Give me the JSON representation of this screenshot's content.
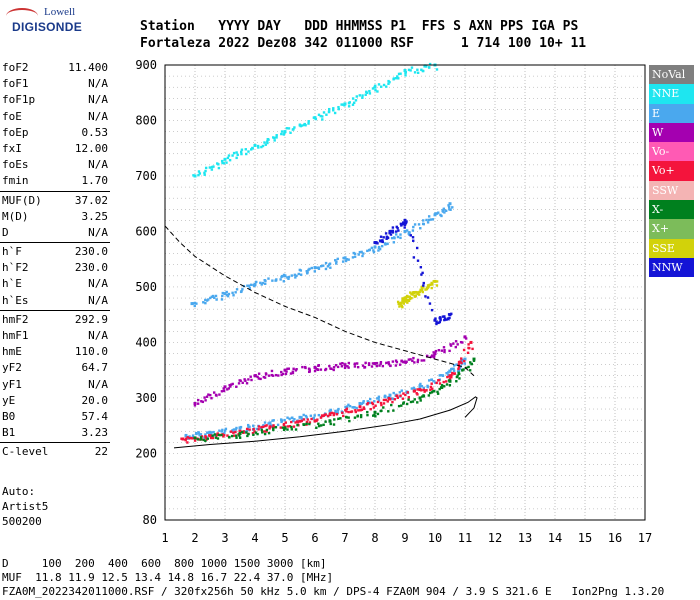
{
  "logo": {
    "line1": "Lowell",
    "line2": "DIGISONDE"
  },
  "header": {
    "labels": "Station   YYYY DAY   DDD HHMMSS P1  FFS S AXN PPS IGA PS",
    "values": "Fortaleza 2022 Dez08 342 011000 RSF      1 714 100 10+ 11"
  },
  "params": {
    "g1": [
      {
        "label": "foF2",
        "value": "11.400"
      },
      {
        "label": "foF1",
        "value": "N/A"
      },
      {
        "label": "foF1p",
        "value": "N/A"
      },
      {
        "label": "foE",
        "value": "N/A"
      },
      {
        "label": "foEp",
        "value": "0.53"
      },
      {
        "label": "fxI",
        "value": "12.00"
      },
      {
        "label": "foEs",
        "value": "N/A"
      },
      {
        "label": "fmin",
        "value": "1.70"
      }
    ],
    "g2": [
      {
        "label": "MUF(D)",
        "value": "37.02"
      },
      {
        "label": "M(D)",
        "value": "3.25"
      },
      {
        "label": "D",
        "value": "N/A"
      }
    ],
    "g3": [
      {
        "label": "h`F",
        "value": "230.0"
      },
      {
        "label": "h`F2",
        "value": "230.0"
      },
      {
        "label": "h`E",
        "value": "N/A"
      },
      {
        "label": "h`Es",
        "value": "N/A"
      }
    ],
    "g4": [
      {
        "label": "hmF2",
        "value": "292.9"
      },
      {
        "label": "hmF1",
        "value": "N/A"
      },
      {
        "label": "hmE",
        "value": "110.0"
      },
      {
        "label": "yF2",
        "value": "64.7"
      },
      {
        "label": "yF1",
        "value": "N/A"
      },
      {
        "label": "yE",
        "value": "20.0"
      },
      {
        "label": "B0",
        "value": "57.4"
      },
      {
        "label": "B1",
        "value": "3.23"
      }
    ],
    "g5": [
      {
        "label": "C-level",
        "value": "22"
      }
    ],
    "auto": [
      "Auto:",
      "Artist5",
      "500200"
    ]
  },
  "legend": [
    {
      "label": "NoVal",
      "color": "#7f7f7f"
    },
    {
      "label": "NNE",
      "color": "#1ee6f0"
    },
    {
      "label": "E",
      "color": "#4aa8ee"
    },
    {
      "label": "W",
      "color": "#a400b0"
    },
    {
      "label": "Vo-",
      "color": "#ff5ab4"
    },
    {
      "label": "Vo+",
      "color": "#f4143c"
    },
    {
      "label": "SSW",
      "color": "#f4b4b4"
    },
    {
      "label": "X-",
      "color": "#00801e"
    },
    {
      "label": "X+",
      "color": "#7cbc5a"
    },
    {
      "label": "SSE",
      "color": "#d2d20a"
    },
    {
      "label": "NNW",
      "color": "#1414d6"
    }
  ],
  "footer": {
    "line1": "D     100  200  400  600  800 1000 1500 3000 [km]",
    "line2": "MUF  11.8 11.9 12.5 13.4 14.8 16.7 22.4 37.0 [MHz]",
    "line3": "FZA0M_2022342011000.RSF / 320fx256h 50 kHz 5.0 km / DPS-4 FZA0M 904 / 3.9 S 321.6 E   Ion2Png 1.3.20"
  },
  "chart_data": {
    "type": "scatter",
    "xlim": [
      1,
      17
    ],
    "ylim": [
      80,
      900
    ],
    "x_ticks": [
      1,
      2,
      3,
      4,
      5,
      6,
      7,
      8,
      9,
      10,
      11,
      12,
      13,
      14,
      15,
      16,
      17
    ],
    "y_ticks": [
      80,
      200,
      300,
      400,
      500,
      600,
      700,
      800,
      900
    ],
    "grid": true,
    "traces": [
      {
        "name": "E",
        "color": "#4aa8ee",
        "x": [
          1.7,
          2.5,
          3.5,
          4.5,
          5.5,
          6.5,
          7.5,
          8.5,
          9.5,
          10.5,
          11.0
        ],
        "y": [
          232,
          238,
          246,
          255,
          265,
          276,
          290,
          305,
          322,
          348,
          370
        ]
      },
      {
        "name": "Vo+",
        "color": "#f4143c",
        "x": [
          1.6,
          2.5,
          3.5,
          4.5,
          5.5,
          6.5,
          7.5,
          8.5,
          9.5,
          10.5,
          11.2
        ],
        "y": [
          226,
          232,
          240,
          248,
          258,
          270,
          284,
          298,
          315,
          340,
          400
        ]
      },
      {
        "name": "W",
        "color": "#a400b0",
        "x": [
          2.0,
          3.0,
          4.0,
          5.0,
          6.0,
          7.0,
          8.0,
          9.0,
          10.0,
          11.0
        ],
        "y": [
          290,
          320,
          340,
          350,
          355,
          360,
          362,
          365,
          380,
          410
        ]
      },
      {
        "name": "X-",
        "color": "#00801e",
        "x": [
          2.0,
          3.5,
          5.0,
          6.5,
          8.0,
          9.5,
          10.5,
          11.3
        ],
        "y": [
          228,
          236,
          246,
          258,
          274,
          300,
          330,
          370
        ]
      },
      {
        "name": "E",
        "color": "#4aa8ee",
        "x": [
          1.9,
          3.0,
          4.0,
          5.0,
          6.0,
          7.0,
          8.0,
          9.0,
          10.0,
          10.5
        ],
        "y": [
          470,
          488,
          505,
          520,
          535,
          552,
          572,
          600,
          630,
          650
        ]
      },
      {
        "name": "NNE",
        "color": "#1ee6f0",
        "x": [
          2.0,
          3.0,
          4.0,
          5.0,
          6.0,
          7.0,
          8.0,
          9.0,
          10.0
        ],
        "y": [
          700,
          730,
          755,
          780,
          805,
          830,
          860,
          890,
          900
        ]
      },
      {
        "name": "SSE",
        "color": "#d2d20a",
        "x": [
          8.8,
          9.0,
          9.3,
          9.6,
          10.0
        ],
        "y": [
          470,
          480,
          490,
          500,
          510
        ]
      },
      {
        "name": "NNW",
        "color": "#1414d6",
        "x": [
          8.0,
          8.5,
          9.0,
          10.0,
          10.5
        ],
        "y": [
          580,
          600,
          620,
          440,
          450
        ]
      }
    ],
    "lines": [
      {
        "style": "solid",
        "x": [
          1.3,
          2.5,
          4.0,
          5.5,
          7.0,
          8.5,
          9.5,
          10.5,
          11.1,
          11.35,
          11.4,
          11.3,
          11.0
        ],
        "y": [
          210,
          216,
          222,
          230,
          240,
          252,
          262,
          278,
          292,
          302,
          300,
          282,
          265
        ]
      },
      {
        "style": "dashed",
        "x": [
          1.0,
          1.5,
          2.0,
          3.0,
          4.0,
          5.0,
          6.0,
          7.0,
          8.0,
          9.0,
          10.0,
          11.0,
          11.3
        ],
        "y": [
          610,
          580,
          555,
          520,
          490,
          465,
          445,
          420,
          400,
          385,
          370,
          355,
          340
        ]
      }
    ]
  }
}
